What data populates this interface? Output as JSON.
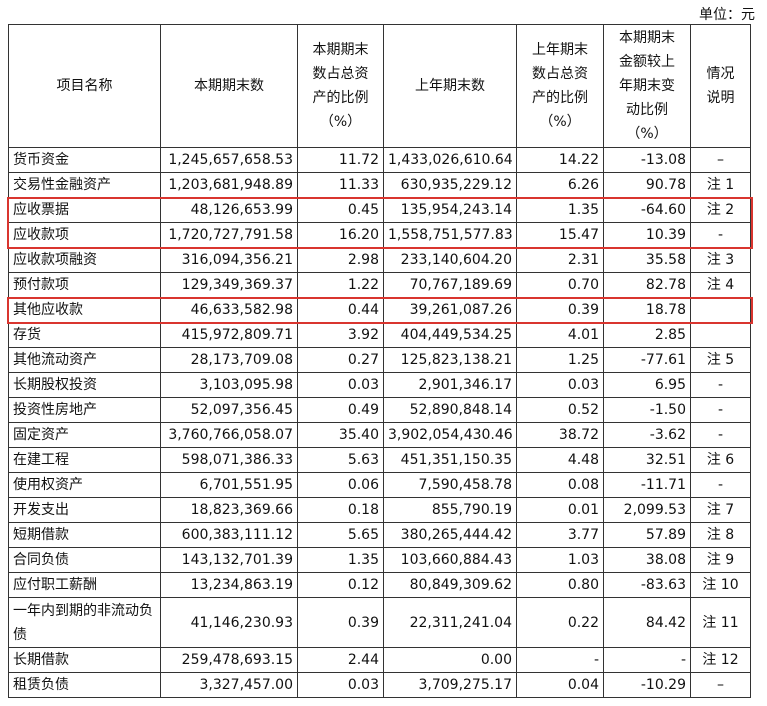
{
  "unit": "单位：元",
  "table": {
    "header": [
      [
        "项目名称"
      ],
      [
        "本期期末数"
      ],
      [
        "本期期末",
        "数占总资",
        "产的比例",
        "（%）"
      ],
      [
        "上年期末数"
      ],
      [
        "上年期末",
        "数占总资",
        "产的比例",
        "（%）"
      ],
      [
        "本期期末",
        "金额较上",
        "年期末变",
        "动比例",
        "（%）"
      ],
      [
        "情况",
        "说明"
      ]
    ],
    "rows": [
      [
        "货币资金",
        "1,245,657,658.53",
        "11.72",
        "1,433,026,610.64",
        "14.22",
        "-13.08",
        "–"
      ],
      [
        "交易性金融资产",
        "1,203,681,948.89",
        "11.33",
        "630,935,229.12",
        "6.26",
        "90.78",
        "注 1"
      ],
      [
        "应收票据",
        "48,126,653.99",
        "0.45",
        "135,954,243.14",
        "1.35",
        "-64.60",
        "注 2"
      ],
      [
        "应收款项",
        "1,720,727,791.58",
        "16.20",
        "1,558,751,577.83",
        "15.47",
        "10.39",
        "-"
      ],
      [
        "应收款项融资",
        "316,094,356.21",
        "2.98",
        "233,140,604.20",
        "2.31",
        "35.58",
        "注 3"
      ],
      [
        "预付款项",
        "129,349,369.37",
        "1.22",
        "70,767,189.69",
        "0.70",
        "82.78",
        "注 4"
      ],
      [
        "其他应收款",
        "46,633,582.98",
        "0.44",
        "39,261,087.26",
        "0.39",
        "18.78"
      ],
      [
        "存货",
        "415,972,809.71",
        "3.92",
        "404,449,534.25",
        "4.01",
        "2.85"
      ],
      [
        "其他流动资产",
        "28,173,709.08",
        "0.27",
        "125,823,138.21",
        "1.25",
        "-77.61",
        "注 5"
      ],
      [
        "长期股权投资",
        "3,103,095.98",
        "0.03",
        "2,901,346.17",
        "0.03",
        "6.95",
        "-"
      ],
      [
        "投资性房地产",
        "52,097,356.45",
        "0.49",
        "52,890,848.14",
        "0.52",
        "-1.50",
        "-"
      ],
      [
        "固定资产",
        "3,760,766,058.07",
        "35.40",
        "3,902,054,430.46",
        "38.72",
        "-3.62",
        "-"
      ],
      [
        "在建工程",
        "598,071,386.33",
        "5.63",
        "451,351,150.35",
        "4.48",
        "32.51",
        "注 6"
      ],
      [
        "使用权资产",
        "6,701,551.95",
        "0.06",
        "7,590,458.78",
        "0.08",
        "-11.71",
        "-"
      ],
      [
        "开发支出",
        "18,823,369.66",
        "0.18",
        "855,790.19",
        "0.01",
        "2,099.53",
        "注 7"
      ],
      [
        "短期借款",
        "600,383,111.12",
        "5.65",
        "380,265,444.42",
        "3.77",
        "57.89",
        "注 8"
      ],
      [
        "合同负债",
        "143,132,701.39",
        "1.35",
        "103,660,884.43",
        "1.03",
        "38.08",
        "注 9"
      ],
      [
        "应付职工薪酬",
        "13,234,863.19",
        "0.12",
        "80,849,309.62",
        "0.80",
        "-83.63",
        "注 10"
      ],
      [
        "一年内到期的非流动负债",
        "41,146,230.93",
        "0.39",
        "22,311,241.04",
        "0.22",
        "84.42",
        "注 11"
      ],
      [
        "长期借款",
        "259,478,693.15",
        "2.44",
        "0.00",
        "-",
        "-",
        "注 12"
      ],
      [
        "租赁负债",
        "3,327,457.00",
        "0.03",
        "3,709,275.17",
        "0.04",
        "-10.29",
        "–"
      ]
    ]
  }
}
